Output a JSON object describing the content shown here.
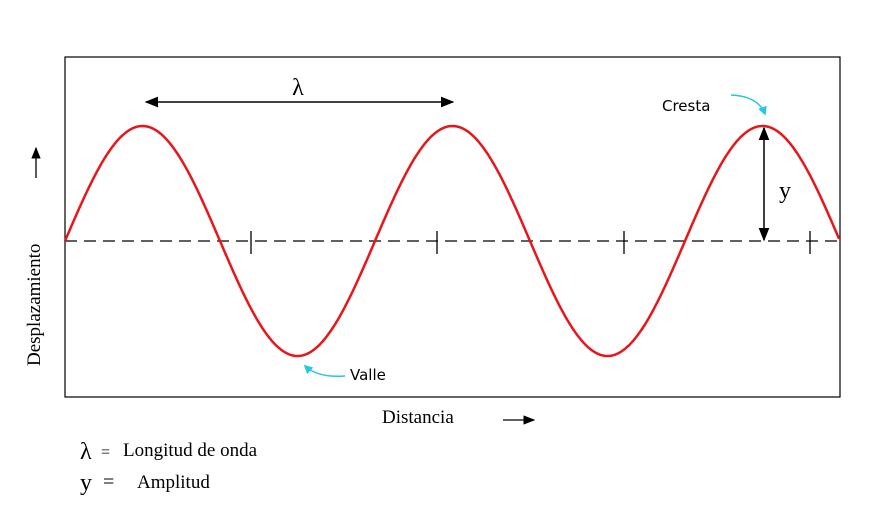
{
  "diagram": {
    "wavelength_symbol": "λ",
    "amplitude_symbol": "y",
    "crest_label": "Cresta",
    "trough_label": "Valle",
    "x_axis_label": "Distancia",
    "y_axis_label": "Desplazamiento",
    "arrow_glyph": "⟶",
    "colors": {
      "wave": "#e8161b",
      "pointer": "#29c6e0",
      "line": "#000000"
    }
  },
  "legend": [
    {
      "symbol": "λ",
      "equals": "=",
      "text": "Longitud de onda"
    },
    {
      "symbol": "y",
      "equals": "=",
      "text": "Amplitud"
    }
  ]
}
